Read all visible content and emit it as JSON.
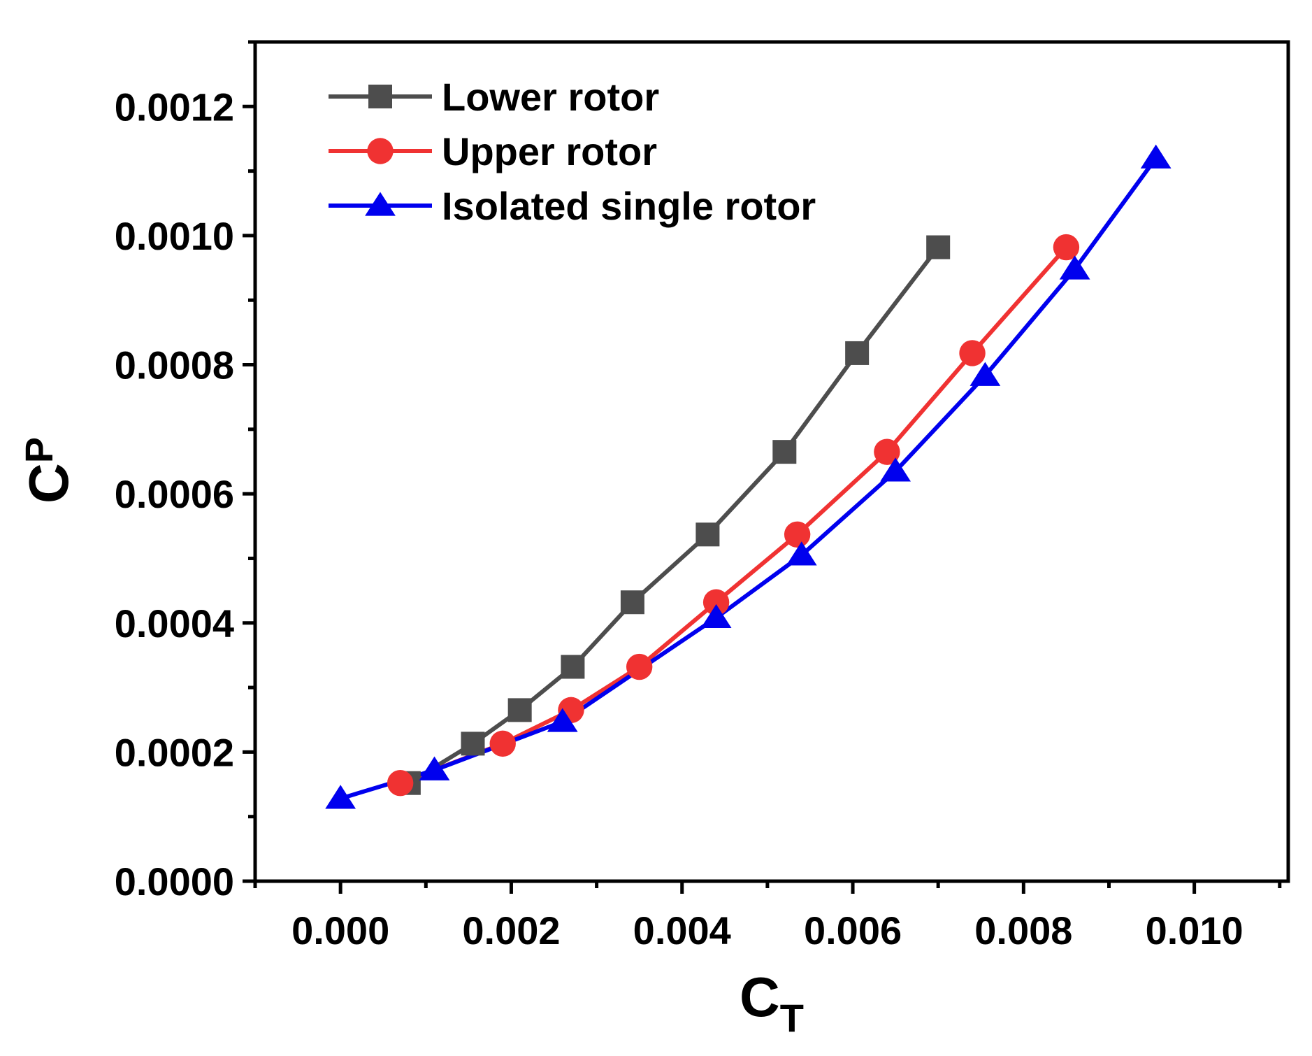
{
  "chart_data": {
    "type": "line",
    "title": "",
    "xlabel": {
      "main": "C",
      "sub": "T"
    },
    "ylabel": {
      "main": "C",
      "sub": "P"
    },
    "xlim": [
      -0.001,
      0.0111
    ],
    "ylim": [
      0.0,
      0.0013
    ],
    "grid": false,
    "legend_position": "top-left",
    "x_ticks": [
      "0.000",
      "0.002",
      "0.004",
      "0.006",
      "0.008",
      "0.010"
    ],
    "x_tick_values": [
      0.0,
      0.002,
      0.004,
      0.006,
      0.008,
      0.01
    ],
    "y_ticks": [
      "0.0000",
      "0.0002",
      "0.0004",
      "0.0006",
      "0.0008",
      "0.0010",
      "0.0012"
    ],
    "y_tick_values": [
      0.0,
      0.0002,
      0.0004,
      0.0006,
      0.0008,
      0.001,
      0.0012
    ],
    "series": [
      {
        "name": "Lower rotor",
        "color": "#4d4d4d",
        "marker": "square",
        "x": [
          0.0008,
          0.00155,
          0.0021,
          0.00272,
          0.00342,
          0.0043,
          0.0052,
          0.00605,
          0.007
        ],
        "y": [
          0.000152,
          0.000213,
          0.000265,
          0.000332,
          0.000432,
          0.000537,
          0.000665,
          0.000818,
          0.000982
        ]
      },
      {
        "name": "Upper rotor",
        "color": "#f03232",
        "marker": "circle",
        "x": [
          0.0007,
          0.0019,
          0.0027,
          0.0035,
          0.0044,
          0.00535,
          0.0064,
          0.0074,
          0.0085
        ],
        "y": [
          0.000152,
          0.000213,
          0.000265,
          0.000332,
          0.000432,
          0.000537,
          0.000665,
          0.000818,
          0.000982
        ]
      },
      {
        "name": "Isolated single rotor",
        "color": "#0000ee",
        "marker": "triangle",
        "x": [
          0.0,
          0.0011,
          0.0026,
          0.0044,
          0.0054,
          0.0065,
          0.00755,
          0.0086,
          0.00955
        ],
        "y": [
          0.000128,
          0.000172,
          0.000247,
          0.000408,
          0.000505,
          0.000635,
          0.000783,
          0.000948,
          0.00112
        ]
      }
    ]
  }
}
